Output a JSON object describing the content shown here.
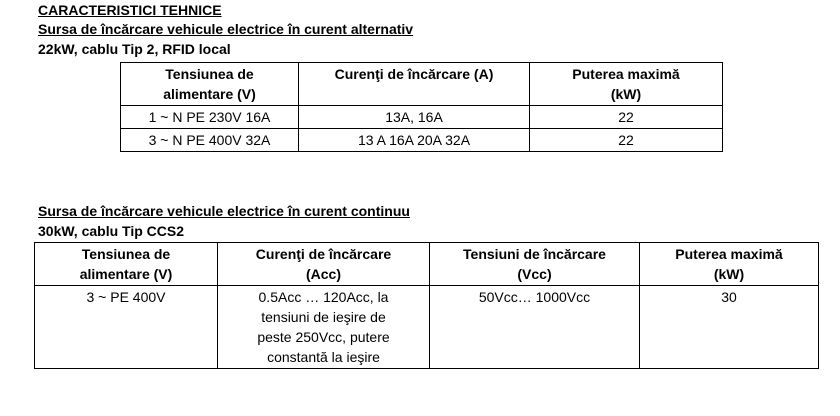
{
  "header": {
    "title": "CARACTERISTICI TEHNICE"
  },
  "sections": [
    {
      "title": "Sursa de încărcare vehicule electrice în curent alternativ",
      "subtitle": "22kW, cablu Tip 2, RFID local",
      "table": {
        "columns": [
          "Tensiunea de alimentare (V)",
          "Curenţi de încărcare (A)",
          "Puterea maximă (kW)"
        ],
        "rows": [
          [
            "1 ~ N  PE  230V  16A",
            "13A,  16A",
            "22"
          ],
          [
            "3 ~ N  PE  400V 32A",
            "13 A  16A  20A  32A",
            "22"
          ]
        ]
      }
    },
    {
      "title": "Sursa de încărcare vehicule electrice în curent continuu",
      "subtitle": "30kW, cablu Tip CCS2",
      "table": {
        "columns": [
          "Tensiunea de alimentare (V)",
          "Curenţi de încărcare (Acc)",
          "Tensiuni de încărcare (Vcc)",
          "Puterea maximă (kW)"
        ],
        "rows": [
          [
            "3 ~   PE  400V",
            "0.5Acc … 120Acc, la tensiuni de ieşire de peste 250Vcc, putere constantă la ieşire",
            "50Vcc… 1000Vcc",
            "30"
          ]
        ]
      }
    }
  ]
}
